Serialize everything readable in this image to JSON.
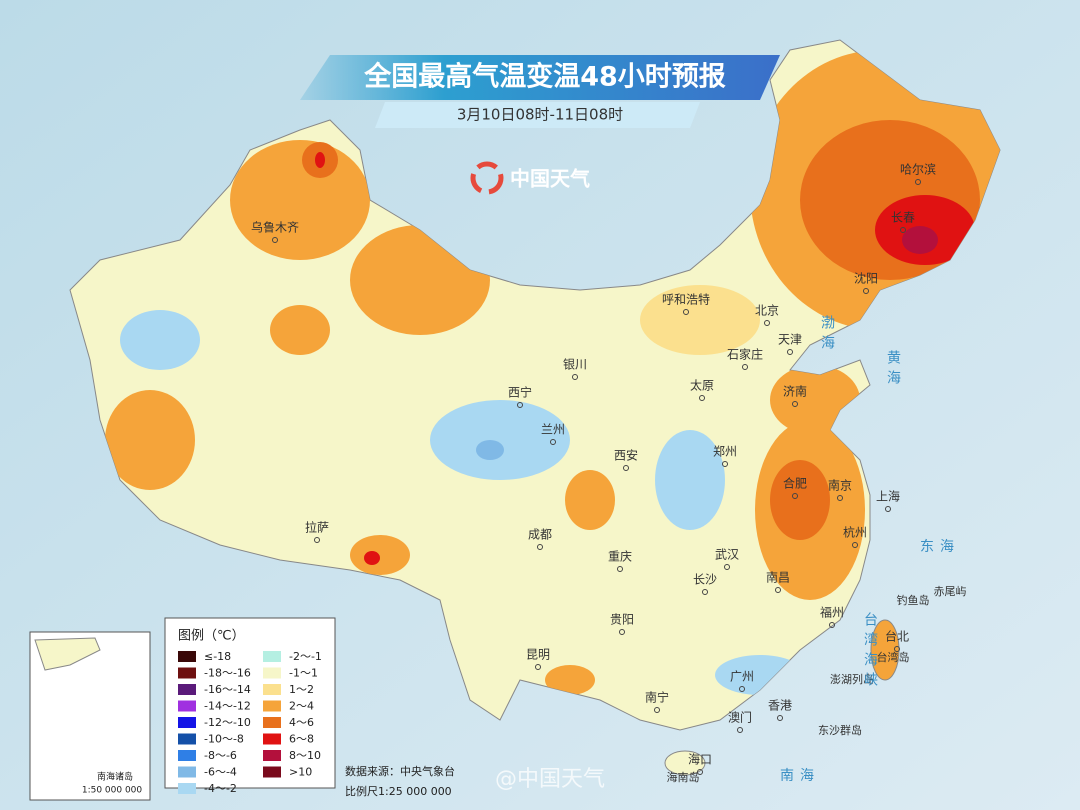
{
  "header": {
    "title": "全国最高气温变温48小时预报",
    "subtitle": "3月10日08时-11日08时",
    "logo": "中国天气"
  },
  "cities": [
    "乌鲁木齐",
    "呼和浩特",
    "北京",
    "天津",
    "石家庄",
    "太原",
    "济南",
    "银川",
    "西宁",
    "兰州",
    "西安",
    "郑州",
    "合肥",
    "南京",
    "上海",
    "拉萨",
    "成都",
    "重庆",
    "武汉",
    "杭州",
    "长沙",
    "南昌",
    "贵阳",
    "福州",
    "台北",
    "昆明",
    "南宁",
    "广州",
    "香港",
    "澳门",
    "海口",
    "哈尔滨",
    "长春",
    "沈阳"
  ],
  "islands": [
    "钓鱼岛",
    "赤尾屿",
    "台湾岛",
    "澎湖列岛",
    "东沙群岛",
    "海南岛"
  ],
  "seas": [
    "渤海",
    "黄海",
    "东海",
    "台湾海峡",
    "南海"
  ],
  "legend": {
    "title": "图例（℃）",
    "items": [
      {
        "label": "≤-18",
        "color": "#3a0808"
      },
      {
        "label": "-18～-16",
        "color": "#6e1010"
      },
      {
        "label": "-16～-14",
        "color": "#5a1a7a"
      },
      {
        "label": "-14～-12",
        "color": "#a030e0"
      },
      {
        "label": "-12～-10",
        "color": "#1414e6"
      },
      {
        "label": "-10～-8",
        "color": "#1450a8"
      },
      {
        "label": "-8～-6",
        "color": "#2f7fe6"
      },
      {
        "label": "-6～-4",
        "color": "#80b9e6"
      },
      {
        "label": "-4～-2",
        "color": "#a9d8f2"
      },
      {
        "label": "-2～-1",
        "color": "#b5efe2"
      },
      {
        "label": "-1～1",
        "color": "#f6f6c9"
      },
      {
        "label": "1～2",
        "color": "#fbe08e"
      },
      {
        "label": "2～4",
        "color": "#f5a43a"
      },
      {
        "label": "4～6",
        "color": "#e8701c"
      },
      {
        "label": "6～8",
        "color": "#e01212"
      },
      {
        "label": "8～10",
        "color": "#b3103c"
      },
      {
        "label": ">10",
        "color": "#7a0a1c"
      }
    ]
  },
  "footer": {
    "source": "数据来源：中央气象台",
    "scale": "比例尺1:25 000 000"
  },
  "inset": {
    "label": "南海诸岛",
    "scale": "1:50 000 000"
  },
  "watermark": "@中国天气"
}
